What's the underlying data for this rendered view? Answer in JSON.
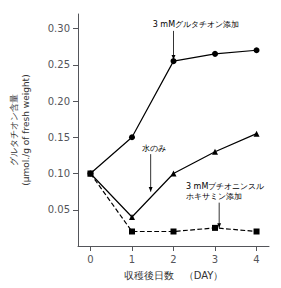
{
  "chart_data": {
    "type": "line",
    "x": [
      0,
      1,
      2,
      3,
      4
    ],
    "series": [
      {
        "color": "#000000",
        "marker": "circle",
        "line_style": "solid",
        "values": [
          0.1,
          0.15,
          0.255,
          0.265,
          0.27
        ]
      },
      {
        "color": "#000000",
        "marker": "triangle",
        "line_style": "solid",
        "values": [
          0.1,
          0.04,
          0.1,
          0.13,
          0.155
        ]
      },
      {
        "color": "#000000",
        "marker": "square",
        "line_style": "dashed",
        "values": [
          0.1,
          0.02,
          0.02,
          0.025,
          0.02
        ]
      }
    ],
    "xlabel": "収穫後日数　（DAY）",
    "ylabel": "グルタチオン含量\n(μmol./g of fresh weight)",
    "xlim": [
      -0.3,
      4.3
    ],
    "ylim": [
      0,
      0.32
    ],
    "xticks": [
      0,
      1,
      2,
      3,
      4
    ],
    "yticks": [
      0.05,
      {
        "value": 0.1,
        "label": "0.10"
      },
      0.15,
      {
        "value": 0.2,
        "label": "0.20"
      },
      0.25,
      {
        "value": 0.3,
        "label": "0.30"
      }
    ],
    "grid": false,
    "annotations": [
      {
        "text": "3 mMグルタチオン添加",
        "x": 2.0,
        "y": 0.257,
        "text_x": 1.5,
        "text_y": 0.305
      },
      {
        "text": "水のみ",
        "x": 1.45,
        "y": 0.075,
        "text_x": 1.25,
        "text_y": 0.135
      },
      {
        "text": "3 mMブチオニンスル\nホキサミン添加",
        "x": 3.1,
        "y": 0.025,
        "text_x": 2.3,
        "text_y": 0.075
      }
    ]
  }
}
